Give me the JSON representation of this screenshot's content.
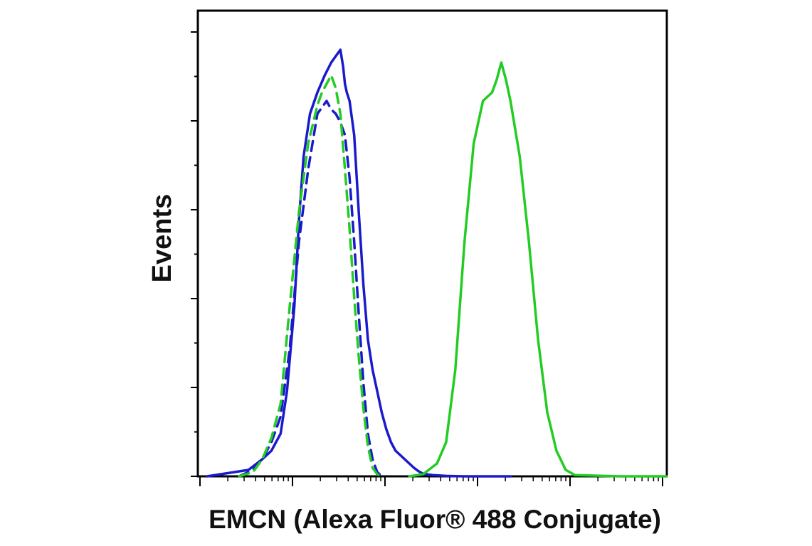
{
  "chart_data": {
    "type": "line",
    "title": "",
    "xlabel": "EMCN (Alexa Fluor® 488 Conjugate)",
    "ylabel": "Events",
    "x_scale": "log",
    "xlim": [
      -0.1,
      5.0
    ],
    "ylim": [
      0,
      100
    ],
    "x_ticks_shown": false,
    "y_ticks_shown": false,
    "grid": false,
    "legend": "none",
    "series": [
      {
        "color": "#1a1acc",
        "dash": "solid",
        "x": [
          0.0,
          0.15,
          0.3,
          0.45,
          0.6,
          0.7,
          0.75,
          0.8,
          0.87,
          0.95,
          1.0,
          1.05,
          1.12,
          1.2,
          1.28,
          1.35,
          1.4,
          1.45,
          1.48,
          1.5,
          1.52,
          1.55,
          1.6,
          1.65,
          1.7,
          1.75,
          1.8,
          1.85,
          1.9,
          1.95,
          2.0,
          2.05,
          2.1,
          2.15,
          2.2,
          2.25,
          2.3,
          2.35,
          2.45,
          2.6,
          2.8,
          3.0,
          3.3
        ],
        "y": [
          0,
          0.5,
          1,
          1.5,
          4,
          6,
          8,
          10,
          20,
          40,
          60,
          75,
          85,
          90,
          94,
          97,
          98.5,
          100,
          96,
          92,
          90,
          88,
          80,
          62,
          45,
          32,
          25,
          20,
          15,
          11,
          8,
          6,
          5,
          4,
          3,
          2,
          1.2,
          0.6,
          0.3,
          0.1,
          0,
          0,
          0
        ]
      },
      {
        "color": "#1a1acc",
        "dash": "dashed",
        "x": [
          0.35,
          0.5,
          0.6,
          0.7,
          0.8,
          0.9,
          1.0,
          1.1,
          1.2,
          1.3,
          1.35,
          1.4,
          1.45,
          1.5,
          1.55,
          1.6,
          1.65,
          1.7,
          1.75,
          1.8,
          1.85,
          1.9
        ],
        "y": [
          0,
          1.5,
          4,
          8,
          14,
          30,
          55,
          72,
          85,
          88,
          86,
          85,
          83,
          80,
          70,
          55,
          38,
          22,
          10,
          4,
          1,
          0
        ]
      },
      {
        "color": "#22cc22",
        "dash": "dashed",
        "x": [
          0.35,
          0.5,
          0.6,
          0.7,
          0.8,
          0.9,
          1.0,
          1.1,
          1.2,
          1.25,
          1.3,
          1.35,
          1.4,
          1.45,
          1.5,
          1.55,
          1.6,
          1.65,
          1.7,
          1.75,
          1.8,
          1.85,
          1.9
        ],
        "y": [
          0,
          1,
          4,
          9,
          17,
          40,
          62,
          78,
          87,
          90,
          92,
          94,
          91,
          85,
          72,
          58,
          42,
          28,
          16,
          7,
          2,
          0.5,
          0
        ]
      },
      {
        "color": "#22cc22",
        "dash": "solid",
        "x": [
          2.2,
          2.35,
          2.5,
          2.6,
          2.7,
          2.8,
          2.9,
          3.0,
          3.05,
          3.1,
          3.15,
          3.2,
          3.25,
          3.3,
          3.4,
          3.5,
          3.6,
          3.7,
          3.8,
          3.9,
          4.0,
          4.5,
          5.0
        ],
        "y": [
          0,
          0.5,
          3,
          8,
          25,
          55,
          78,
          88,
          89,
          90,
          93,
          97,
          93,
          88,
          75,
          55,
          32,
          15,
          6,
          1.5,
          0.3,
          0,
          0
        ]
      }
    ]
  }
}
